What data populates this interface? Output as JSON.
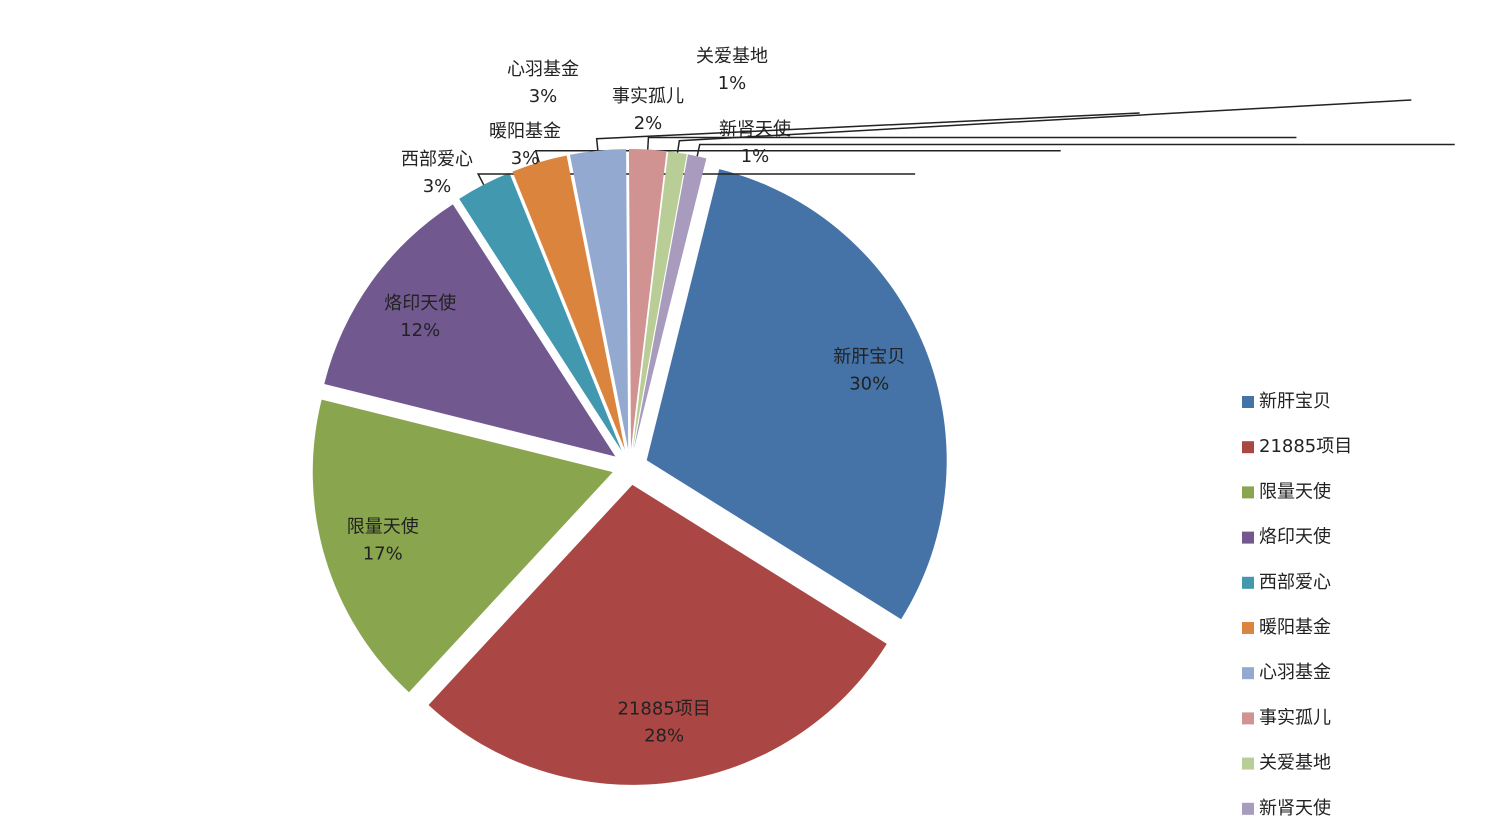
{
  "chart_data": {
    "type": "pie",
    "categories": [
      "新肝宝贝",
      "21885项目",
      "限量天使",
      "烙印天使",
      "西部爱心",
      "暖阳基金",
      "心羽基金",
      "事实孤儿",
      "关爱基地",
      "新肾天使"
    ],
    "values": [
      30,
      28,
      17,
      12,
      3,
      3,
      3,
      2,
      1,
      1
    ],
    "value_labels": [
      "30%",
      "28%",
      "17%",
      "12%",
      "3%",
      "3%",
      "3%",
      "2%",
      "1%",
      "1%"
    ],
    "colors": [
      "#4572a7",
      "#aa4643",
      "#89a54e",
      "#71588f",
      "#4198af",
      "#db843d",
      "#93a9cf",
      "#d19392",
      "#b9cd96",
      "#a99bbd"
    ],
    "legend": "right"
  }
}
